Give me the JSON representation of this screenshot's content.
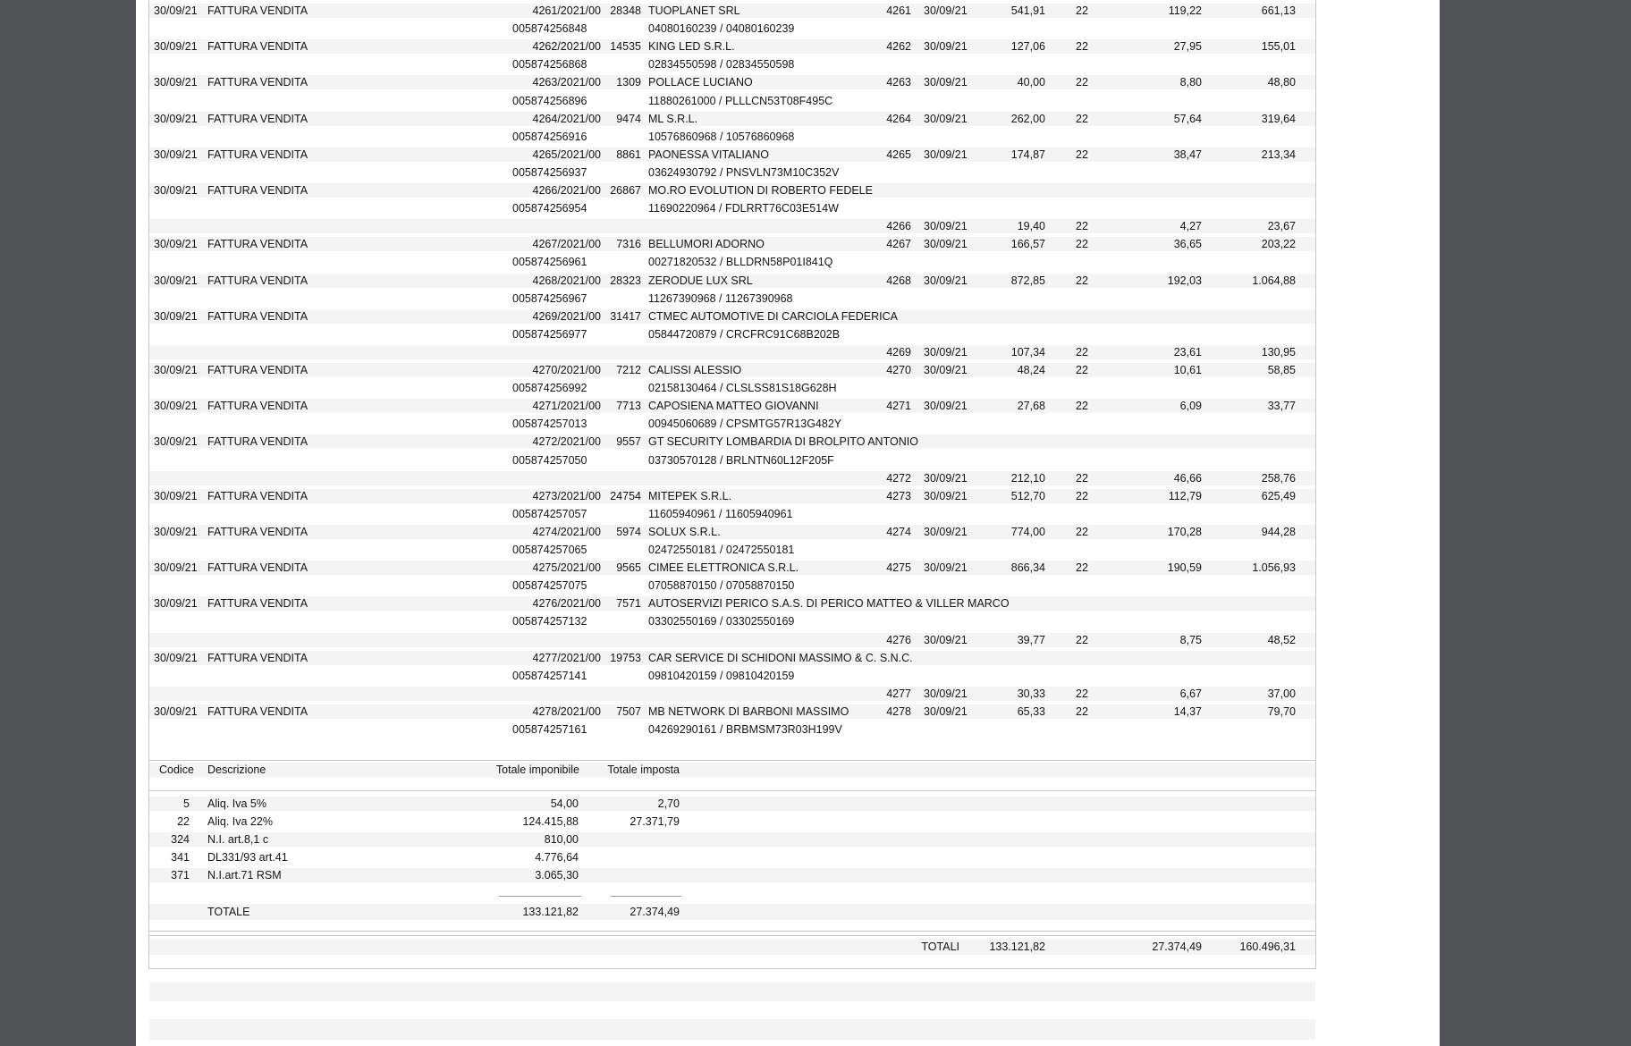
{
  "page": {
    "background_color": "#515256",
    "paper_color": "#ffffff",
    "band_color": "#f4f4f4",
    "line_color": "#c6c6c6",
    "text_color": "#141414"
  },
  "register": {
    "entries": [
      {
        "date": "30/09/21",
        "type": "FATTURA VENDITA",
        "doc": "4261/2021/00",
        "cnt": "28348",
        "name": "TUOPLANET SRL",
        "protocol": "005874256848",
        "piva": "04080160239 / 04080160239",
        "num": "4261",
        "date2": "30/09/21",
        "imponibile": "541,91",
        "aliq": "22",
        "imposta": "119,22",
        "totale": "661,13",
        "lines": 2
      },
      {
        "date": "30/09/21",
        "type": "FATTURA VENDITA",
        "doc": "4262/2021/00",
        "cnt": "14535",
        "name": "KING LED S.R.L.",
        "protocol": "005874256868",
        "piva": "02834550598 / 02834550598",
        "num": "4262",
        "date2": "30/09/21",
        "imponibile": "127,06",
        "aliq": "22",
        "imposta": "27,95",
        "totale": "155,01",
        "lines": 2
      },
      {
        "date": "30/09/21",
        "type": "FATTURA VENDITA",
        "doc": "4263/2021/00",
        "cnt": "1309",
        "name": "POLLACE LUCIANO",
        "protocol": "005874256896",
        "piva": "11880261000 / PLLLCN53T08F495C",
        "num": "4263",
        "date2": "30/09/21",
        "imponibile": "40,00",
        "aliq": "22",
        "imposta": "8,80",
        "totale": "48,80",
        "lines": 2
      },
      {
        "date": "30/09/21",
        "type": "FATTURA VENDITA",
        "doc": "4264/2021/00",
        "cnt": "9474",
        "name": "ML S.R.L.",
        "protocol": "005874256916",
        "piva": "10576860968 / 10576860968",
        "num": "4264",
        "date2": "30/09/21",
        "imponibile": "262,00",
        "aliq": "22",
        "imposta": "57,64",
        "totale": "319,64",
        "lines": 2
      },
      {
        "date": "30/09/21",
        "type": "FATTURA VENDITA",
        "doc": "4265/2021/00",
        "cnt": "8861",
        "name": "PAONESSA VITALIANO",
        "protocol": "005874256937",
        "piva": "03624930792 / PNSVLN73M10C352V",
        "num": "4265",
        "date2": "30/09/21",
        "imponibile": "174,87",
        "aliq": "22",
        "imposta": "38,47",
        "totale": "213,34",
        "lines": 2
      },
      {
        "date": "30/09/21",
        "type": "FATTURA VENDITA",
        "doc": "4266/2021/00",
        "cnt": "26867",
        "name": "MO.RO EVOLUTION DI ROBERTO FEDELE",
        "protocol": "005874256954",
        "piva": "11690220964 / FDLRRT76C03E514W",
        "num": "4266",
        "date2": "30/09/21",
        "imponibile": "19,40",
        "aliq": "22",
        "imposta": "4,27",
        "totale": "23,67",
        "lines": 3
      },
      {
        "date": "30/09/21",
        "type": "FATTURA VENDITA",
        "doc": "4267/2021/00",
        "cnt": "7316",
        "name": "BELLUMORI ADORNO",
        "protocol": "005874256961",
        "piva": "00271820532 / BLLDRN58P01I841Q",
        "num": "4267",
        "date2": "30/09/21",
        "imponibile": "166,57",
        "aliq": "22",
        "imposta": "36,65",
        "totale": "203,22",
        "lines": 2
      },
      {
        "date": "30/09/21",
        "type": "FATTURA VENDITA",
        "doc": "4268/2021/00",
        "cnt": "28323",
        "name": "ZERODUE LUX SRL",
        "protocol": "005874256967",
        "piva": "11267390968 / 11267390968",
        "num": "4268",
        "date2": "30/09/21",
        "imponibile": "872,85",
        "aliq": "22",
        "imposta": "192,03",
        "totale": "1.064,88",
        "lines": 2
      },
      {
        "date": "30/09/21",
        "type": "FATTURA VENDITA",
        "doc": "4269/2021/00",
        "cnt": "31417",
        "name": "CTMEC AUTOMOTIVE DI CARCIOLA FEDERICA",
        "protocol": "005874256977",
        "piva": "05844720879 / CRCFRC91C68B202B",
        "num": "4269",
        "date2": "30/09/21",
        "imponibile": "107,34",
        "aliq": "22",
        "imposta": "23,61",
        "totale": "130,95",
        "lines": 3
      },
      {
        "date": "30/09/21",
        "type": "FATTURA VENDITA",
        "doc": "4270/2021/00",
        "cnt": "7212",
        "name": "CALISSI ALESSIO",
        "protocol": "005874256992",
        "piva": "02158130464 / CLSLSS81S18G628H",
        "num": "4270",
        "date2": "30/09/21",
        "imponibile": "48,24",
        "aliq": "22",
        "imposta": "10,61",
        "totale": "58,85",
        "lines": 2
      },
      {
        "date": "30/09/21",
        "type": "FATTURA VENDITA",
        "doc": "4271/2021/00",
        "cnt": "7713",
        "name": "CAPOSIENA MATTEO GIOVANNI",
        "protocol": "005874257013",
        "piva": "00945060689 / CPSMTG57R13G482Y",
        "num": "4271",
        "date2": "30/09/21",
        "imponibile": "27,68",
        "aliq": "22",
        "imposta": "6,09",
        "totale": "33,77",
        "lines": 2
      },
      {
        "date": "30/09/21",
        "type": "FATTURA VENDITA",
        "doc": "4272/2021/00",
        "cnt": "9557",
        "name": "GT SECURITY LOMBARDIA DI BROLPITO ANTONIO",
        "protocol": "005874257050",
        "piva": "03730570128 / BRLNTN60L12F205F",
        "num": "4272",
        "date2": "30/09/21",
        "imponibile": "212,10",
        "aliq": "22",
        "imposta": "46,66",
        "totale": "258,76",
        "lines": 3
      },
      {
        "date": "30/09/21",
        "type": "FATTURA VENDITA",
        "doc": "4273/2021/00",
        "cnt": "24754",
        "name": "MITEPEK S.R.L.",
        "protocol": "005874257057",
        "piva": "11605940961 / 11605940961",
        "num": "4273",
        "date2": "30/09/21",
        "imponibile": "512,70",
        "aliq": "22",
        "imposta": "112,79",
        "totale": "625,49",
        "lines": 2
      },
      {
        "date": "30/09/21",
        "type": "FATTURA VENDITA",
        "doc": "4274/2021/00",
        "cnt": "5974",
        "name": "SOLUX S.R.L.",
        "protocol": "005874257065",
        "piva": "02472550181 / 02472550181",
        "num": "4274",
        "date2": "30/09/21",
        "imponibile": "774,00",
        "aliq": "22",
        "imposta": "170,28",
        "totale": "944,28",
        "lines": 2
      },
      {
        "date": "30/09/21",
        "type": "FATTURA VENDITA",
        "doc": "4275/2021/00",
        "cnt": "9565",
        "name": "CIMEE ELETTRONICA S.R.L.",
        "protocol": "005874257075",
        "piva": "07058870150 / 07058870150",
        "num": "4275",
        "date2": "30/09/21",
        "imponibile": "866,34",
        "aliq": "22",
        "imposta": "190,59",
        "totale": "1.056,93",
        "lines": 2
      },
      {
        "date": "30/09/21",
        "type": "FATTURA VENDITA",
        "doc": "4276/2021/00",
        "cnt": "7571",
        "name": "AUTOSERVIZI PERICO S.A.S. DI PERICO MATTEO & VILLER MARCO",
        "protocol": "005874257132",
        "piva": "03302550169 / 03302550169",
        "num": "4276",
        "date2": "30/09/21",
        "imponibile": "39,77",
        "aliq": "22",
        "imposta": "8,75",
        "totale": "48,52",
        "lines": 3
      },
      {
        "date": "30/09/21",
        "type": "FATTURA VENDITA",
        "doc": "4277/2021/00",
        "cnt": "19753",
        "name": "CAR SERVICE DI SCHIDONI MASSIMO & C. S.N.C.",
        "protocol": "005874257141",
        "piva": "09810420159 / 09810420159",
        "num": "4277",
        "date2": "30/09/21",
        "imponibile": "30,33",
        "aliq": "22",
        "imposta": "6,67",
        "totale": "37,00",
        "lines": 3
      },
      {
        "date": "30/09/21",
        "type": "FATTURA VENDITA",
        "doc": "4278/2021/00",
        "cnt": "7507",
        "name": "MB NETWORK DI BARBONI MASSIMO",
        "protocol": "005874257161",
        "piva": "04269290161 / BRBMSM73R03H199V",
        "num": "4278",
        "date2": "30/09/21",
        "imponibile": "65,33",
        "aliq": "22",
        "imposta": "14,37",
        "totale": "79,70",
        "lines": 2
      }
    ]
  },
  "summary": {
    "header": {
      "codice": "Codice",
      "descrizione": "Descrizione",
      "imponibile": "Totale imponibile",
      "imposta": "Totale imposta"
    },
    "rows": [
      {
        "codice": "5",
        "descrizione": "Aliq. Iva 5%",
        "imponibile": "54,00",
        "imposta": "2,70"
      },
      {
        "codice": "22",
        "descrizione": "Aliq. Iva 22%",
        "imponibile": "124.415,88",
        "imposta": "27.371,79"
      },
      {
        "codice": "324",
        "descrizione": "N.I. art.8,1 c",
        "imponibile": "810,00",
        "imposta": ""
      },
      {
        "codice": "341",
        "descrizione": "DL331/93 art.41",
        "imponibile": "4.776,64",
        "imposta": ""
      },
      {
        "codice": "371",
        "descrizione": "N.I.art.71 RSM",
        "imponibile": "3.065,30",
        "imposta": ""
      }
    ],
    "totale": {
      "label": "TOTALE",
      "imponibile": "133.121,82",
      "imposta": "27.374,49"
    }
  },
  "grand_total": {
    "label": "TOTALI",
    "imponibile": "133.121,82",
    "imposta": "27.374,49",
    "totale": "160.496,31"
  }
}
